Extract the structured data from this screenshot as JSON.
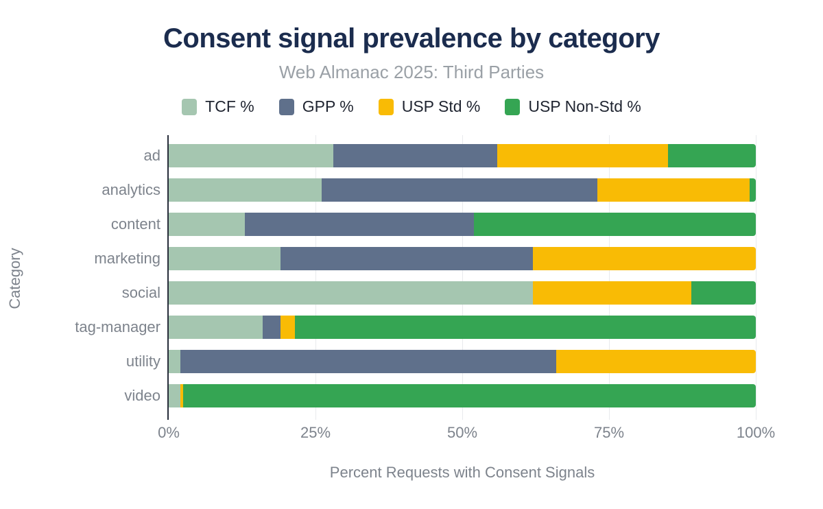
{
  "colors": {
    "title_text": "#1b2c4e",
    "subtitle_text": "#9aa0a6",
    "muted_text": "#7d838c",
    "legend_text": "#1f2430",
    "gridline": "#e8eaed",
    "axis_line": "#272c3a",
    "tcf": "#a5c6b0",
    "gpp": "#5f708b",
    "usp_std": "#f9bb05",
    "usp_nonstd": "#35a553"
  },
  "chart_data": {
    "type": "bar",
    "orientation": "horizontal",
    "stacked": true,
    "normalized_to_100": true,
    "title": "Consent signal prevalence by category",
    "subtitle": "Web Almanac 2025: Third Parties",
    "xlabel": "Percent Requests with Consent Signals",
    "ylabel": "Category",
    "xlim": [
      0,
      100
    ],
    "x_tick_labels": [
      "0%",
      "25%",
      "50%",
      "75%",
      "100%"
    ],
    "x_tick_values": [
      0,
      25,
      50,
      75,
      100
    ],
    "grid": true,
    "legend_position": "top",
    "categories": [
      "ad",
      "analytics",
      "content",
      "marketing",
      "social",
      "tag-manager",
      "utility",
      "video"
    ],
    "series": [
      {
        "name": "TCF %",
        "color": "#a5c6b0",
        "values": [
          28,
          26,
          13,
          19,
          62,
          16,
          2,
          2
        ]
      },
      {
        "name": "GPP %",
        "color": "#5f708b",
        "values": [
          28,
          47,
          39,
          43,
          0,
          3,
          64,
          0
        ]
      },
      {
        "name": "USP Std %",
        "color": "#f9bb05",
        "values": [
          29,
          26,
          0,
          38,
          27,
          2.5,
          34,
          0.5
        ]
      },
      {
        "name": "USP Non-Std %",
        "color": "#35a553",
        "values": [
          15,
          1,
          48,
          0,
          11,
          78.5,
          0,
          97.5
        ]
      }
    ]
  }
}
